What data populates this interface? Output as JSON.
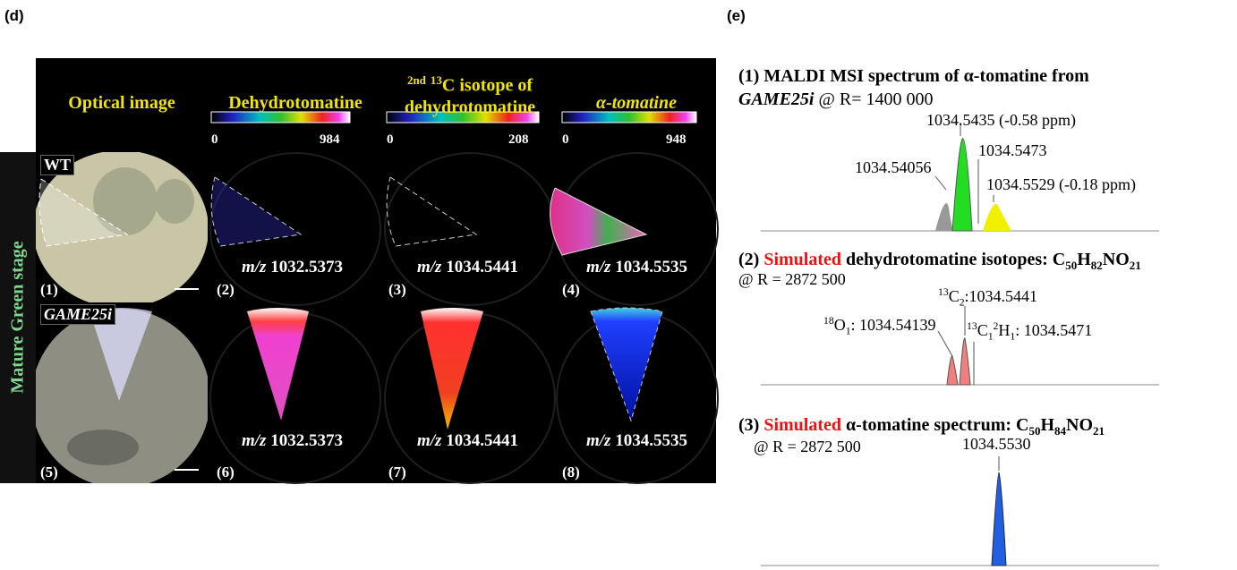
{
  "panel_labels": {
    "d": "(d)",
    "e": "(e)"
  },
  "stage": "Mature Green stage",
  "columns": [
    {
      "header": "Optical image"
    },
    {
      "header": "Dehydrotomatine",
      "scale": [
        0,
        984
      ]
    },
    {
      "header_parts": [
        "2",
        "nd",
        "13",
        "C isotope of",
        "dehydrotomatine"
      ],
      "scale": [
        0,
        208
      ]
    },
    {
      "header": "α-tomatine",
      "scale": [
        0,
        948
      ]
    }
  ],
  "rows": [
    {
      "label": "WT",
      "panels": [
        "(1)",
        "(2)",
        "(3)",
        "(4)"
      ]
    },
    {
      "label": "GAME25i",
      "panels": [
        "(5)",
        "(6)",
        "(7)",
        "(8)"
      ]
    }
  ],
  "mz_prefix": "m/z",
  "mz_values": [
    "1032.5373",
    "1034.5441",
    "1034.5535"
  ],
  "spectra": [
    {
      "title_parts": [
        "(1) MALDI MSI spectrum of α-tomatine from",
        "GAME25i",
        "@ R= 1400 000"
      ],
      "peak_labels": [
        "1034.5435 (-0.58 ppm)",
        "1034.54056",
        "1034.5473",
        "1034.5529 (-0.18 ppm)"
      ]
    },
    {
      "title_parts": [
        "(2)",
        "Simulated",
        "dehydrotomatine isotopes:"
      ],
      "formula": [
        "C",
        "50",
        "H",
        "82",
        "NO",
        "21"
      ],
      "resolution": "@ R = 2872 500",
      "peak_labels": [
        [
          "13",
          "C",
          "2",
          ":1034.5441"
        ],
        [
          "18",
          "O",
          "1",
          ": 1034.54139"
        ],
        [
          "13",
          "C",
          "1",
          "2",
          "H",
          "1",
          ": 1034.5471"
        ]
      ]
    },
    {
      "title_parts": [
        "(3)",
        "Simulated",
        "α-tomatine spectrum:"
      ],
      "formula": [
        "C",
        "50",
        "H",
        "84",
        "NO",
        "21"
      ],
      "resolution": "@ R = 2872 500",
      "peak_labels": [
        "1034.5530"
      ]
    }
  ]
}
